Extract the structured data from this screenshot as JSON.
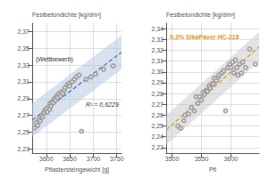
{
  "chart_data": [
    {
      "type": "scatter",
      "xlabel": "Pflastersteingewicht [g]",
      "ylabel": "Festbetondichte [kg/dm³]",
      "annotations": [
        {
          "text": "(Wettbewerb)"
        },
        {
          "text": "R² = 0,6229"
        }
      ],
      "xlim": [
        3570,
        3760
      ],
      "xticks": [
        3600,
        3650,
        3700,
        3750
      ],
      "ylim": [
        2.225,
        2.38
      ],
      "yticks": [
        {
          "value": 2.23,
          "label": "2,23"
        },
        {
          "value": 2.25,
          "label": "2,25"
        },
        {
          "value": 2.27,
          "label": "2,27"
        },
        {
          "value": 2.29,
          "label": "2,29"
        },
        {
          "value": 2.31,
          "label": "2,31"
        },
        {
          "value": 2.33,
          "label": "2,33"
        },
        {
          "value": 2.35,
          "label": "2,35"
        },
        {
          "value": 2.37,
          "label": "2,37"
        }
      ],
      "grid": true,
      "series": [
        {
          "type": "band",
          "color": "#b8c9e0",
          "x": [
            3570,
            3760
          ],
          "lower": [
            2.244052,
            2.325172
          ],
          "upper": [
            2.284389,
            2.365509
          ]
        },
        {
          "type": "line",
          "color": "#4a6fa5",
          "line_style": "dashed",
          "x": [
            3570,
            3760
          ],
          "values": [
            2.26422,
            2.34534
          ]
        },
        {
          "type": "scatter",
          "color": "#999999",
          "marker": "circle",
          "x": [
            3575,
            3578,
            3582,
            3584,
            3587,
            3590,
            3592,
            3595,
            3597,
            3600,
            3602,
            3605,
            3607,
            3608,
            3610,
            3612,
            3615,
            3617,
            3620,
            3622,
            3624,
            3627,
            3630,
            3632,
            3635,
            3638,
            3640,
            3645,
            3648,
            3650,
            3655,
            3660,
            3665,
            3670,
            3675,
            3685,
            3695,
            3705,
            3722,
            3742
          ],
          "values": [
            2.255,
            2.261,
            2.258,
            2.265,
            2.263,
            2.27,
            2.268,
            2.273,
            2.276,
            2.278,
            2.274,
            2.28,
            2.277,
            2.284,
            2.281,
            2.286,
            2.285,
            2.29,
            2.288,
            2.293,
            2.291,
            2.296,
            2.293,
            2.298,
            2.296,
            2.3,
            2.303,
            2.306,
            2.308,
            2.305,
            2.31,
            2.313,
            2.316,
            2.318,
            2.251,
            2.313,
            2.316,
            2.319,
            2.325,
            2.329
          ]
        }
      ]
    },
    {
      "type": "scatter",
      "xlabel": "Pfl",
      "ylabel": "Festbetondichte [kg/dm³]",
      "annotations": [
        {
          "text": "0,3% SikaPaver HC-218",
          "color": "#e09820"
        }
      ],
      "xlim": [
        3490,
        3648
      ],
      "xticks": [
        3500,
        3550,
        3600
      ],
      "ylim": [
        2.225,
        2.345
      ],
      "yticks": [
        {
          "value": 2.23,
          "label": "2,23"
        },
        {
          "value": 2.24,
          "label": "2,24"
        },
        {
          "value": 2.25,
          "label": "2,25"
        },
        {
          "value": 2.26,
          "label": "2,26"
        },
        {
          "value": 2.27,
          "label": "2,27"
        },
        {
          "value": 2.28,
          "label": "2,28"
        },
        {
          "value": 2.29,
          "label": "2,29"
        },
        {
          "value": 2.3,
          "label": "2,30"
        },
        {
          "value": 2.31,
          "label": "2,31"
        },
        {
          "value": 2.32,
          "label": "2,32"
        },
        {
          "value": 2.33,
          "label": "2,33"
        },
        {
          "value": 2.34,
          "label": "2,34"
        }
      ],
      "grid": true,
      "series": [
        {
          "type": "band",
          "color": "#cccccc",
          "x": [
            3490,
            3648
          ],
          "lower": [
            2.232593,
            2.30954
          ],
          "upper": [
            2.259961,
            2.336908
          ]
        },
        {
          "type": "line",
          "color": "#e09820",
          "line_style": "dashed",
          "x": [
            3490,
            3648
          ],
          "values": [
            2.246277,
            2.323224
          ]
        },
        {
          "type": "scatter",
          "color": "#999999",
          "marker": "circle",
          "x": [
            3510,
            3515,
            3520,
            3522,
            3528,
            3533,
            3538,
            3541,
            3544,
            3547,
            3550,
            3553,
            3555,
            3558,
            3560,
            3563,
            3565,
            3568,
            3570,
            3572,
            3575,
            3578,
            3580,
            3585,
            3588,
            3591,
            3595,
            3598,
            3600,
            3603,
            3605,
            3608,
            3610,
            3612,
            3615,
            3618,
            3620,
            3625,
            3632,
            3642
          ],
          "values": [
            2.25,
            2.248,
            2.255,
            2.26,
            2.261,
            2.267,
            2.264,
            2.277,
            2.271,
            2.277,
            2.274,
            2.281,
            2.279,
            2.283,
            2.282,
            2.287,
            2.285,
            2.289,
            2.289,
            2.294,
            2.292,
            2.295,
            2.297,
            2.299,
            2.301,
            2.264,
            2.304,
            2.307,
            2.304,
            2.309,
            2.299,
            2.311,
            2.304,
            2.297,
            2.307,
            2.299,
            2.309,
            2.304,
            2.321,
            2.307
          ]
        }
      ]
    }
  ]
}
